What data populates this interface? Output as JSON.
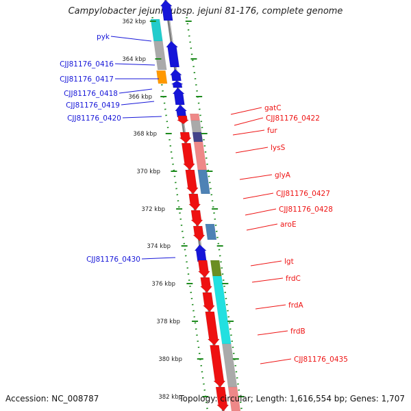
{
  "title": "Campylobacter jejuni subsp. jejuni 81-176, complete genome",
  "footer": {
    "accession": "Accession: NC_008787",
    "stats": "Topology: circular; Length: 1,616,554 bp; Genes: 1,707"
  },
  "colors": {
    "forward": "#1515d8",
    "reverse": "#ee1111",
    "tick": "#1c8a1c",
    "backbone": "#888888"
  },
  "ruler": {
    "labels": [
      "362 kbp",
      "364 kbp",
      "366 kbp",
      "368 kbp",
      "370 kbp",
      "372 kbp",
      "374 kbp",
      "376 kbp",
      "378 kbp",
      "380 kbp",
      "382 kbp"
    ]
  },
  "left_genes": [
    {
      "label": "pyk"
    },
    {
      "label": "CJJ81176_0416"
    },
    {
      "label": "CJJ81176_0417"
    },
    {
      "label": "CJJ81176_0418"
    },
    {
      "label": "CJJ81176_0419"
    },
    {
      "label": "CJJ81176_0420"
    },
    {
      "label": "CJJ81176_0430"
    }
  ],
  "right_genes": [
    {
      "label": "gatC"
    },
    {
      "label": "CJJ81176_0422"
    },
    {
      "label": "fur"
    },
    {
      "label": "lysS"
    },
    {
      "label": "glyA"
    },
    {
      "label": "CJJ81176_0427"
    },
    {
      "label": "CJJ81176_0428"
    },
    {
      "label": "aroE"
    },
    {
      "label": "lgt"
    },
    {
      "label": "frdC"
    },
    {
      "label": "frdA"
    },
    {
      "label": "frdB"
    },
    {
      "label": "CJJ81176_0435"
    }
  ]
}
